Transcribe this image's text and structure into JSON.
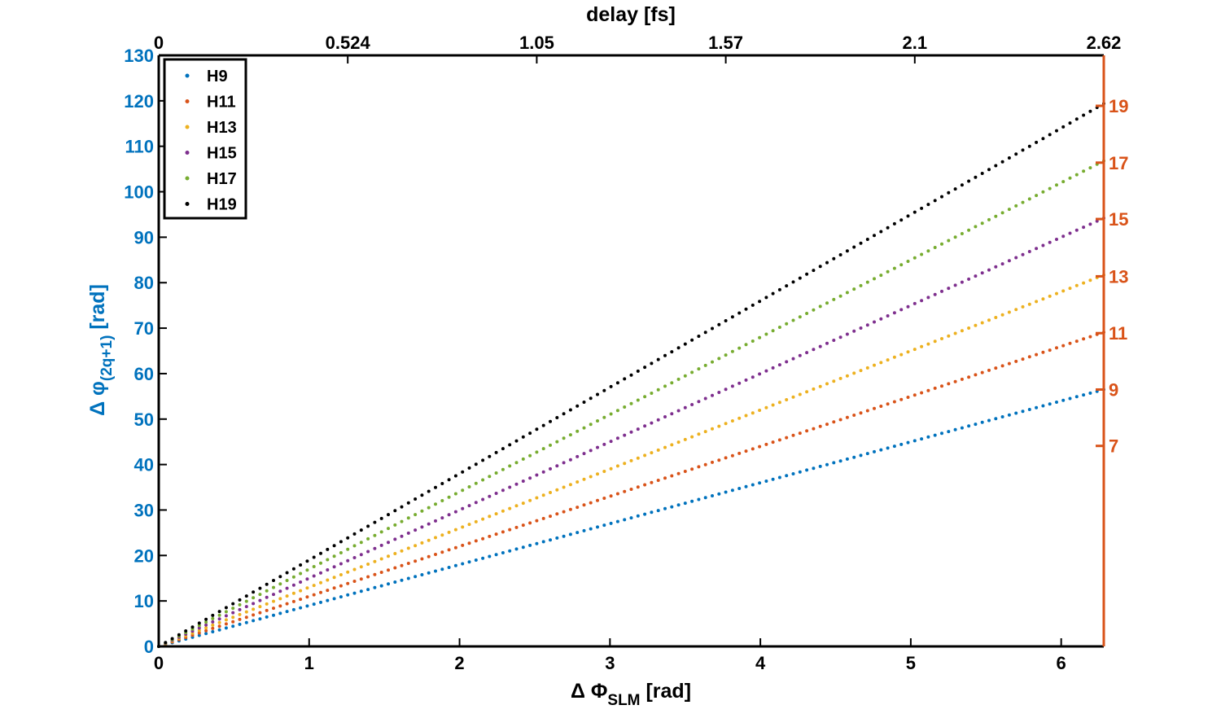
{
  "chart_data": {
    "type": "scatter",
    "xlabel": "Δ Φ",
    "xlabel_sub": "SLM",
    "xlabel_unit": "[rad]",
    "ylabel": "Δ φ",
    "ylabel_sub": "(2q+1)",
    "ylabel_unit": "[rad]",
    "top_xlabel": "delay [fs]",
    "xlim": [
      0,
      6.2832
    ],
    "ylim": [
      0,
      130
    ],
    "x_ticks": [
      "0",
      "1",
      "2",
      "3",
      "4",
      "5",
      "6"
    ],
    "y_ticks": [
      "0",
      "10",
      "20",
      "30",
      "40",
      "50",
      "60",
      "70",
      "80",
      "90",
      "100",
      "110",
      "120",
      "130"
    ],
    "top_ticks": [
      "0",
      "0.524",
      "1.05",
      "1.57",
      "2.1",
      "2.62"
    ],
    "right_ticks": [
      {
        "label": "7",
        "y": 44.1
      },
      {
        "label": "9",
        "y": 56.5
      },
      {
        "label": "11",
        "y": 68.9
      },
      {
        "label": "13",
        "y": 81.4
      },
      {
        "label": "15",
        "y": 94.0
      },
      {
        "label": "17",
        "y": 106.4
      },
      {
        "label": "19",
        "y": 118.9
      }
    ],
    "point_count": 140,
    "legend_position": "top-left",
    "grid": false,
    "series": [
      {
        "name": "H9",
        "color": "#0072BD",
        "x": [
          0,
          1,
          2,
          3,
          4,
          5,
          6,
          6.2832
        ],
        "y": [
          0,
          9,
          18,
          27,
          36,
          45,
          54,
          56.5
        ]
      },
      {
        "name": "H11",
        "color": "#D95319",
        "x": [
          0,
          1,
          2,
          3,
          4,
          5,
          6,
          6.2832
        ],
        "y": [
          0,
          11,
          22,
          33,
          44,
          55,
          66,
          69.1
        ]
      },
      {
        "name": "H13",
        "color": "#EDB120",
        "x": [
          0,
          1,
          2,
          3,
          4,
          5,
          6,
          6.2832
        ],
        "y": [
          0,
          13,
          26,
          39,
          52,
          65,
          78,
          81.7
        ]
      },
      {
        "name": "H15",
        "color": "#7E2F8E",
        "x": [
          0,
          1,
          2,
          3,
          4,
          5,
          6,
          6.2832
        ],
        "y": [
          0,
          15,
          30,
          45,
          60,
          75,
          90,
          94.2
        ]
      },
      {
        "name": "H17",
        "color": "#77AC30",
        "x": [
          0,
          1,
          2,
          3,
          4,
          5,
          6,
          6.2832
        ],
        "y": [
          0,
          17,
          34,
          51,
          68,
          85,
          102,
          106.8
        ]
      },
      {
        "name": "H19",
        "color": "#000000",
        "x": [
          0,
          1,
          2,
          3,
          4,
          5,
          6,
          6.2832
        ],
        "y": [
          0,
          19,
          38,
          57,
          76,
          95,
          114,
          119.4
        ]
      }
    ]
  },
  "colors": {
    "left_axis": "#0072BD",
    "right_axis": "#D95319",
    "frame": "#000000"
  }
}
